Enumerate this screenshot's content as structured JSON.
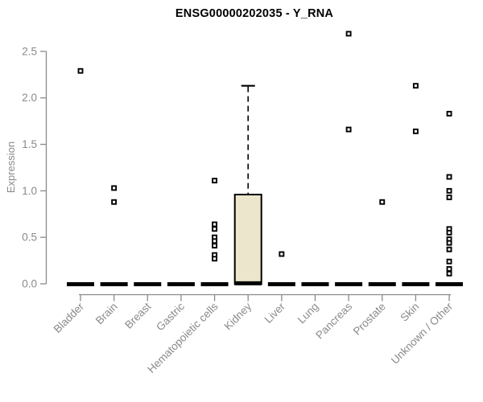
{
  "chart_data": {
    "type": "box",
    "title": "ENSG00000202035 - Y_RNA",
    "xlabel": "",
    "ylabel": "Expression",
    "ylim": [
      0,
      2.72
    ],
    "yticks": [
      0,
      0.5,
      1,
      1.5,
      2,
      2.5
    ],
    "grid": false,
    "legend": false,
    "axis_color": "#8a8a8a",
    "tick_label_color": "#8a8a8a",
    "box_fill": "#ece6cc",
    "box_border": "#000000",
    "point_fill": "#ffffff",
    "point_border": "#000000",
    "categories": [
      "Bladder",
      "Brain",
      "Breast",
      "Gastric",
      "Hematopoietic cells",
      "Kidney",
      "Liver",
      "Lung",
      "Pancreas",
      "Prostate",
      "Skin",
      "Unknown / Other"
    ],
    "series": [
      {
        "category": "Bladder",
        "median": 0,
        "q1": 0,
        "q3": 0,
        "whisker_low": 0,
        "whisker_high": 0,
        "outliers": [
          2.29
        ]
      },
      {
        "category": "Brain",
        "median": 0,
        "q1": 0,
        "q3": 0,
        "whisker_low": 0,
        "whisker_high": 0,
        "outliers": [
          1.03,
          0.88
        ]
      },
      {
        "category": "Breast",
        "median": 0,
        "q1": 0,
        "q3": 0,
        "whisker_low": 0,
        "whisker_high": 0,
        "outliers": []
      },
      {
        "category": "Gastric",
        "median": 0,
        "q1": 0,
        "q3": 0,
        "whisker_low": 0,
        "whisker_high": 0,
        "outliers": []
      },
      {
        "category": "Hematopoietic cells",
        "median": 0,
        "q1": 0,
        "q3": 0,
        "whisker_low": 0,
        "whisker_high": 0,
        "outliers": [
          1.11,
          0.64,
          0.59,
          0.5,
          0.46,
          0.41,
          0.31,
          0.27
        ]
      },
      {
        "category": "Kidney",
        "median": 0.01,
        "q1": 0,
        "q3": 0.96,
        "whisker_low": 0,
        "whisker_high": 2.13,
        "outliers": []
      },
      {
        "category": "Liver",
        "median": 0,
        "q1": 0,
        "q3": 0,
        "whisker_low": 0,
        "whisker_high": 0,
        "outliers": [
          0.32
        ]
      },
      {
        "category": "Lung",
        "median": 0,
        "q1": 0,
        "q3": 0,
        "whisker_low": 0,
        "whisker_high": 0,
        "outliers": []
      },
      {
        "category": "Pancreas",
        "median": 0,
        "q1": 0,
        "q3": 0,
        "whisker_low": 0,
        "whisker_high": 0,
        "outliers": [
          2.69,
          1.66
        ]
      },
      {
        "category": "Prostate",
        "median": 0,
        "q1": 0,
        "q3": 0,
        "whisker_low": 0,
        "whisker_high": 0,
        "outliers": [
          0.88
        ]
      },
      {
        "category": "Skin",
        "median": 0,
        "q1": 0,
        "q3": 0,
        "whisker_low": 0,
        "whisker_high": 0,
        "outliers": [
          2.13,
          1.64
        ]
      },
      {
        "category": "Unknown / Other",
        "median": 0,
        "q1": 0,
        "q3": 0,
        "whisker_low": 0,
        "whisker_high": 0,
        "outliers": [
          1.83,
          1.15,
          1.0,
          0.93,
          0.59,
          0.55,
          0.48,
          0.44,
          0.37,
          0.24,
          0.16,
          0.11
        ]
      }
    ]
  }
}
